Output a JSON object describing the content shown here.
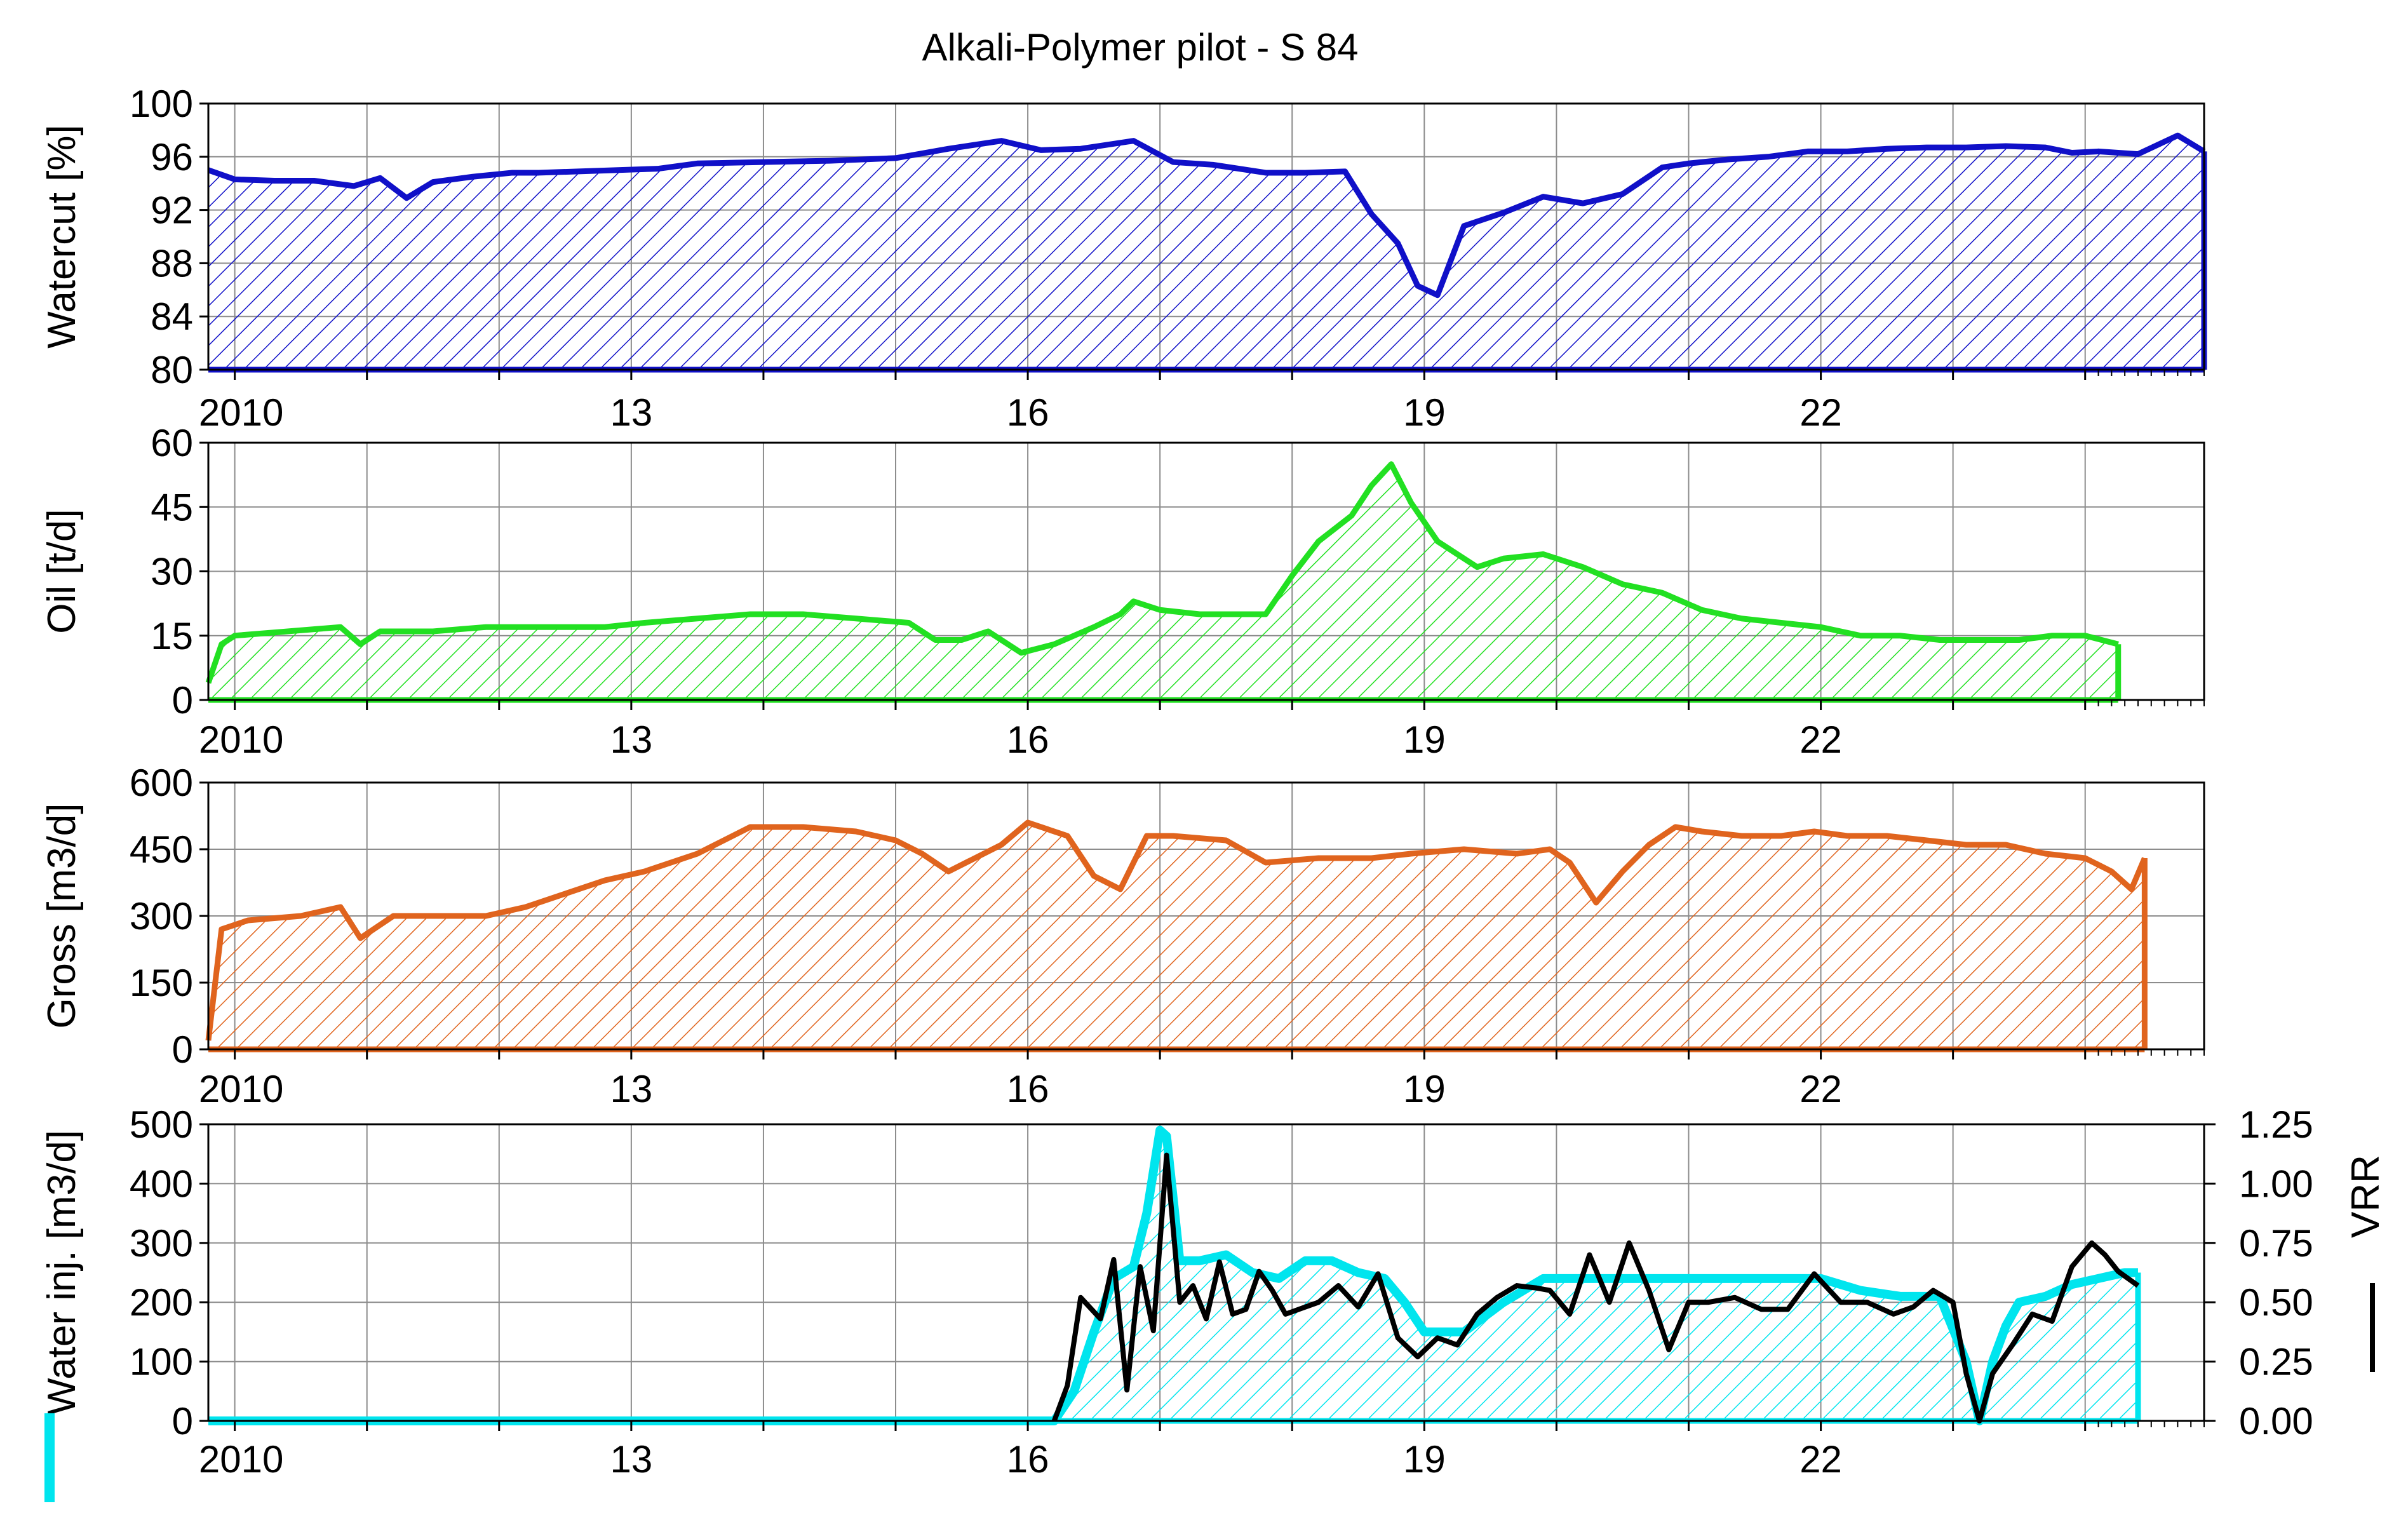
{
  "title": "Alkali-Polymer pilot - S 84",
  "colors": {
    "watercut": "#1010c8",
    "oil": "#22e022",
    "gross": "#e0641e",
    "water_inj": "#00e5ee",
    "vrr": "#000000",
    "grid": "#8c8c8c"
  },
  "x_tick_labels": [
    "2010",
    "13",
    "16",
    "19",
    "22"
  ],
  "chart_data": [
    {
      "type": "area",
      "ylabel": "Watercut [%]",
      "ylim": [
        80,
        100
      ],
      "yticks": [
        80,
        84,
        88,
        92,
        96,
        100
      ],
      "ytick_labels": [
        "80",
        "84",
        "88",
        "92",
        "96",
        "100"
      ],
      "x_unit": "year",
      "xlim": [
        2009.8,
        2024.9
      ],
      "series": [
        {
          "x": [
            2009.8,
            2010.0,
            2010.3,
            2010.6,
            2010.9,
            2011.1,
            2011.3,
            2011.5,
            2011.8,
            2012.1,
            2012.3,
            2012.6,
            2012.9,
            2013.2,
            2013.5,
            2014.0,
            2014.5,
            2015.0,
            2015.4,
            2015.8,
            2016.1,
            2016.4,
            2016.8,
            2017.1,
            2017.4,
            2017.8,
            2018.1,
            2018.4,
            2018.6,
            2018.8,
            2018.95,
            2019.1,
            2019.3,
            2019.6,
            2019.9,
            2020.2,
            2020.5,
            2020.8,
            2021.0,
            2021.3,
            2021.6,
            2021.9,
            2022.2,
            2022.5,
            2022.8,
            2023.1,
            2023.4,
            2023.7,
            2023.9,
            2024.1,
            2024.4,
            2024.7,
            2024.9
          ],
          "values": [
            95,
            94.3,
            94.2,
            94.2,
            93.8,
            94.4,
            92.9,
            94.1,
            94.5,
            94.8,
            94.8,
            94.9,
            95,
            95.1,
            95.5,
            95.6,
            95.7,
            95.9,
            96.6,
            97.2,
            96.5,
            96.6,
            97.2,
            95.6,
            95.4,
            94.8,
            94.8,
            94.9,
            91.7,
            89.5,
            86.3,
            85.6,
            90.8,
            91.8,
            93,
            92.5,
            93.2,
            95.2,
            95.5,
            95.8,
            96,
            96.4,
            96.4,
            96.6,
            96.7,
            96.7,
            96.8,
            96.7,
            96.3,
            96.4,
            96.2,
            97.6,
            96.4
          ]
        }
      ]
    },
    {
      "type": "area",
      "ylabel": "Oil [t/d]",
      "ylim": [
        0,
        60
      ],
      "yticks": [
        0,
        15,
        30,
        45,
        60
      ],
      "ytick_labels": [
        "0",
        "15",
        "30",
        "45",
        "60"
      ],
      "x_unit": "year",
      "xlim": [
        2009.8,
        2024.9
      ],
      "series": [
        {
          "x": [
            2009.8,
            2009.9,
            2010.0,
            2010.4,
            2010.8,
            2010.95,
            2011.1,
            2011.5,
            2011.9,
            2012.2,
            2012.5,
            2012.8,
            2013.1,
            2013.5,
            2013.9,
            2014.3,
            2014.7,
            2015.1,
            2015.3,
            2015.5,
            2015.7,
            2015.95,
            2016.2,
            2016.5,
            2016.7,
            2016.8,
            2017.0,
            2017.3,
            2017.55,
            2017.8,
            2018.0,
            2018.2,
            2018.45,
            2018.6,
            2018.75,
            2018.9,
            2019.1,
            2019.4,
            2019.6,
            2019.9,
            2020.2,
            2020.5,
            2020.8,
            2021.1,
            2021.4,
            2021.7,
            2022.0,
            2022.3,
            2022.6,
            2022.9,
            2023.2,
            2023.5,
            2023.75,
            2024.0,
            2024.25
          ],
          "values": [
            4,
            13,
            15,
            16,
            17,
            13,
            16,
            16,
            17,
            17,
            17,
            17,
            18,
            19,
            20,
            20,
            19,
            18,
            14,
            14,
            16,
            11,
            13,
            17,
            20,
            23,
            21,
            20,
            20,
            20,
            29,
            37,
            43,
            50,
            55,
            46,
            37,
            31,
            33,
            34,
            31,
            27,
            25,
            21,
            19,
            18,
            17,
            15,
            15,
            14,
            14,
            14,
            15,
            15,
            13
          ]
        }
      ]
    },
    {
      "type": "area",
      "ylabel": "Gross [m3/d]",
      "ylim": [
        0,
        600
      ],
      "yticks": [
        0,
        150,
        300,
        450,
        600
      ],
      "ytick_labels": [
        "0",
        "150",
        "300",
        "450",
        "600"
      ],
      "x_unit": "year",
      "xlim": [
        2009.8,
        2024.9
      ],
      "series": [
        {
          "x": [
            2009.8,
            2009.9,
            2010.1,
            2010.5,
            2010.8,
            2010.95,
            2011.2,
            2011.6,
            2011.9,
            2012.2,
            2012.5,
            2012.8,
            2013.1,
            2013.5,
            2013.9,
            2014.3,
            2014.7,
            2015.0,
            2015.2,
            2015.4,
            2015.8,
            2016.0,
            2016.3,
            2016.5,
            2016.7,
            2016.9,
            2017.1,
            2017.5,
            2017.8,
            2018.2,
            2018.6,
            2018.9,
            2019.3,
            2019.7,
            2019.95,
            2020.1,
            2020.3,
            2020.5,
            2020.7,
            2020.9,
            2021.1,
            2021.4,
            2021.7,
            2021.95,
            2022.2,
            2022.5,
            2022.8,
            2023.1,
            2023.4,
            2023.7,
            2024.0,
            2024.2,
            2024.35,
            2024.45
          ],
          "values": [
            20,
            270,
            290,
            300,
            320,
            250,
            300,
            300,
            300,
            320,
            350,
            380,
            400,
            440,
            500,
            500,
            490,
            470,
            440,
            400,
            460,
            510,
            480,
            390,
            360,
            480,
            480,
            470,
            420,
            430,
            430,
            440,
            450,
            440,
            450,
            420,
            330,
            400,
            460,
            500,
            490,
            480,
            480,
            490,
            480,
            480,
            470,
            460,
            460,
            440,
            430,
            400,
            360,
            430
          ]
        }
      ]
    },
    {
      "type": "area",
      "ylabel": "Water inj. [m3/d]",
      "ylim": [
        0,
        500
      ],
      "yticks": [
        0,
        100,
        200,
        300,
        400,
        500
      ],
      "ytick_labels": [
        "0",
        "100",
        "200",
        "300",
        "400",
        "500"
      ],
      "x_unit": "year",
      "xlim": [
        2009.8,
        2024.9
      ],
      "series": [
        {
          "name": "",
          "axis": "left",
          "x": [
            2009.8,
            2016.2,
            2016.35,
            2016.5,
            2016.65,
            2016.8,
            2016.9,
            2017.0,
            2017.05,
            2017.15,
            2017.3,
            2017.5,
            2017.7,
            2017.9,
            2018.1,
            2018.3,
            2018.5,
            2018.7,
            2018.85,
            2019.0,
            2019.3,
            2019.6,
            2019.9,
            2020.2,
            2020.5,
            2020.8,
            2021.1,
            2021.4,
            2021.7,
            2022.0,
            2022.3,
            2022.6,
            2022.9,
            2023.1,
            2023.2,
            2023.3,
            2023.4,
            2023.5,
            2023.7,
            2023.9,
            2024.1,
            2024.3,
            2024.4
          ],
          "values": [
            0,
            0,
            50,
            150,
            240,
            260,
            350,
            490,
            480,
            270,
            270,
            280,
            250,
            240,
            270,
            270,
            250,
            240,
            200,
            150,
            150,
            200,
            240,
            240,
            240,
            240,
            240,
            240,
            240,
            240,
            220,
            210,
            210,
            100,
            0,
            100,
            160,
            200,
            210,
            230,
            240,
            250,
            250
          ]
        },
        {
          "name": "VRR",
          "axis": "right",
          "x": [
            2016.2,
            2016.3,
            2016.4,
            2016.55,
            2016.65,
            2016.75,
            2016.85,
            2016.95,
            2017.05,
            2017.15,
            2017.25,
            2017.35,
            2017.45,
            2017.55,
            2017.65,
            2017.75,
            2017.85,
            2017.95,
            2018.05,
            2018.2,
            2018.35,
            2018.5,
            2018.65,
            2018.8,
            2018.95,
            2019.1,
            2019.25,
            2019.4,
            2019.55,
            2019.7,
            2019.85,
            2019.95,
            2020.1,
            2020.25,
            2020.4,
            2020.55,
            2020.7,
            2020.85,
            2021.0,
            2021.15,
            2021.35,
            2021.55,
            2021.75,
            2021.95,
            2022.15,
            2022.35,
            2022.55,
            2022.7,
            2022.85,
            2023.0,
            2023.1,
            2023.2,
            2023.3,
            2023.45,
            2023.6,
            2023.75,
            2023.9,
            2024.05,
            2024.15,
            2024.25,
            2024.4
          ],
          "values": [
            0,
            0.15,
            0.52,
            0.43,
            0.68,
            0.13,
            0.65,
            0.38,
            1.12,
            0.5,
            0.57,
            0.43,
            0.67,
            0.45,
            0.47,
            0.63,
            0.55,
            0.45,
            0.47,
            0.5,
            0.57,
            0.48,
            0.62,
            0.35,
            0.27,
            0.35,
            0.32,
            0.45,
            0.52,
            0.57,
            0.56,
            0.55,
            0.45,
            0.7,
            0.5,
            0.75,
            0.55,
            0.3,
            0.5,
            0.5,
            0.52,
            0.47,
            0.47,
            0.62,
            0.5,
            0.5,
            0.45,
            0.48,
            0.55,
            0.5,
            0.2,
            0,
            0.2,
            0.32,
            0.45,
            0.42,
            0.65,
            0.75,
            0.7,
            0.63,
            0.57
          ]
        }
      ],
      "ylim_right": [
        0,
        1.25
      ],
      "yticks_right": [
        0,
        0.25,
        0.5,
        0.75,
        1.0,
        1.25
      ],
      "ytick_labels_right": [
        "0.00",
        "0.25",
        "0.50",
        "0.75",
        "1.00",
        "1.25"
      ],
      "ylabel_right": "VRR"
    }
  ]
}
